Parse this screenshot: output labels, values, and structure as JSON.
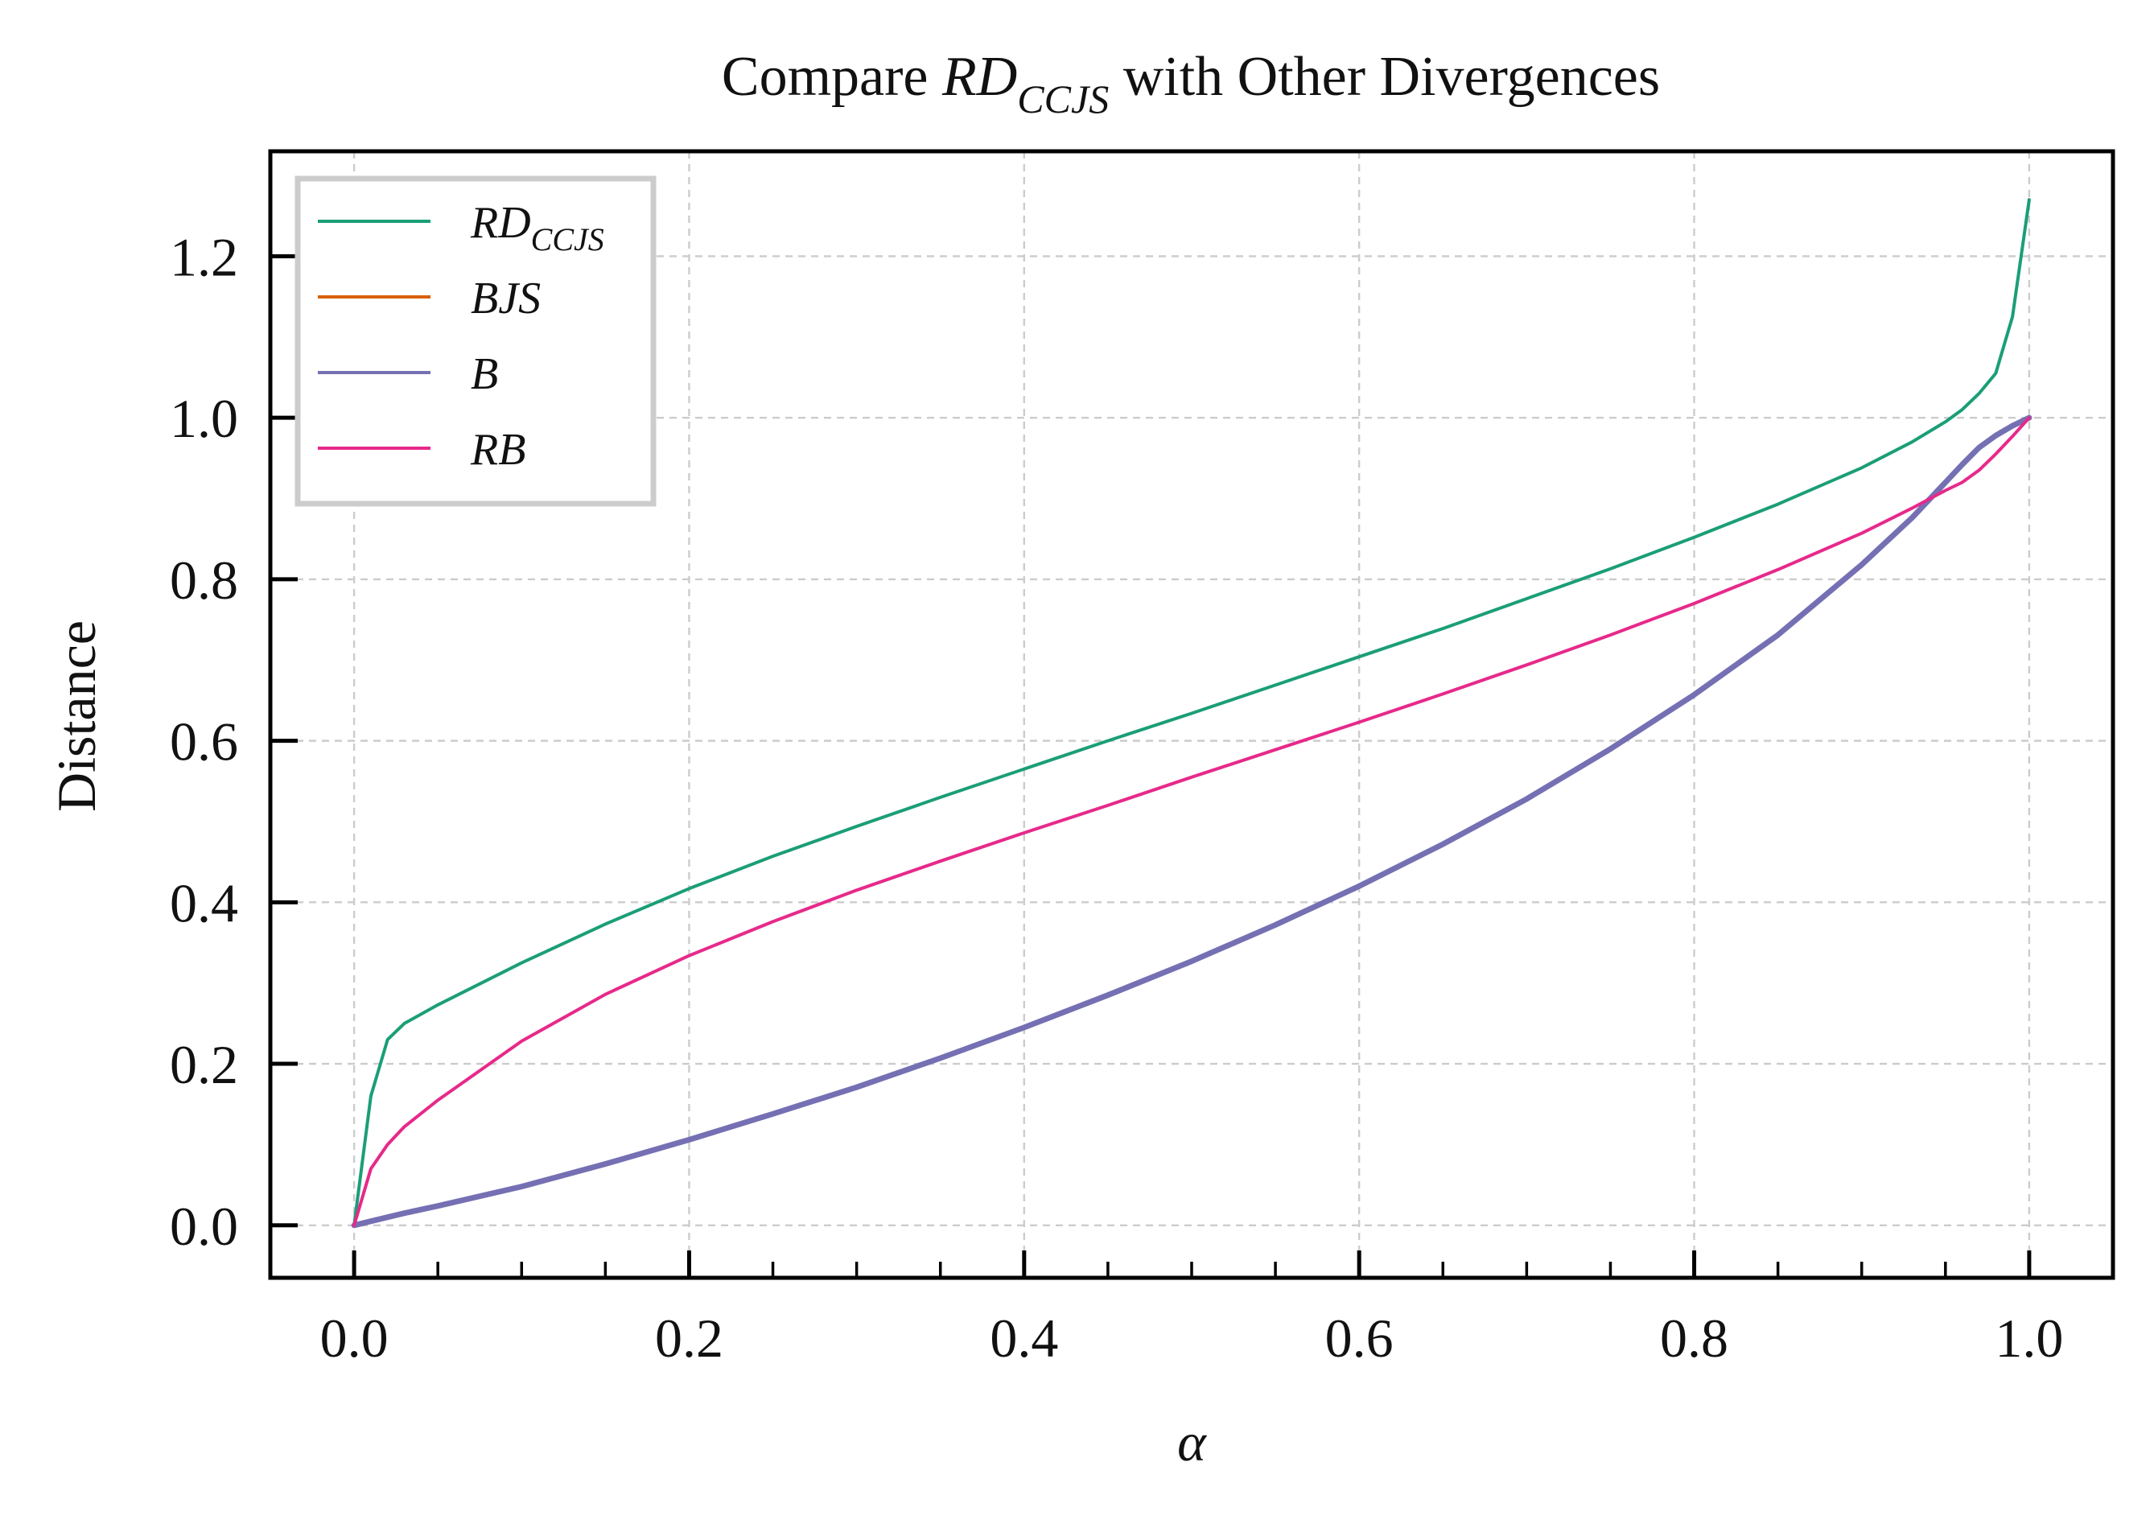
{
  "chart_data": {
    "type": "line",
    "title": {
      "prefix": "Compare ",
      "symbol": "RD",
      "subscript": "CCJS",
      "suffix": " with Other Divergences"
    },
    "xlabel": "α",
    "ylabel": "Distance",
    "xlim": [
      -0.05,
      1.05
    ],
    "ylim": [
      -0.065,
      1.33
    ],
    "xticks": [
      0.0,
      0.2,
      0.4,
      0.6,
      0.8,
      1.0
    ],
    "xtick_labels": [
      "0.0",
      "0.2",
      "0.4",
      "0.6",
      "0.8",
      "1.0"
    ],
    "yticks": [
      0.0,
      0.2,
      0.4,
      0.6,
      0.8,
      1.0,
      1.2
    ],
    "ytick_labels": [
      "0.0",
      "0.2",
      "0.4",
      "0.6",
      "0.8",
      "1.0",
      "1.2"
    ],
    "grid": true,
    "legend_position": "top-left",
    "x": [
      0.0,
      0.01,
      0.02,
      0.03,
      0.05,
      0.1,
      0.15,
      0.2,
      0.25,
      0.3,
      0.35,
      0.4,
      0.45,
      0.5,
      0.55,
      0.6,
      0.65,
      0.7,
      0.75,
      0.8,
      0.85,
      0.9,
      0.93,
      0.95,
      0.96,
      0.97,
      0.98,
      0.99,
      1.0
    ],
    "series": [
      {
        "name": "RD",
        "subscript": "CCJS",
        "color": "#1b9e77",
        "width": 4,
        "values": [
          0.0,
          0.16,
          0.23,
          0.25,
          0.273,
          0.325,
          0.373,
          0.417,
          0.457,
          0.494,
          0.53,
          0.565,
          0.6,
          0.634,
          0.669,
          0.704,
          0.739,
          0.776,
          0.813,
          0.852,
          0.893,
          0.938,
          0.97,
          0.995,
          1.01,
          1.03,
          1.055,
          1.125,
          1.27
        ]
      },
      {
        "name": "BJS",
        "subscript": "",
        "color": "#d95f02",
        "width": 5,
        "values": [
          0.0,
          0.005,
          0.01,
          0.015,
          0.024,
          0.048,
          0.076,
          0.106,
          0.138,
          0.171,
          0.207,
          0.245,
          0.285,
          0.327,
          0.372,
          0.42,
          0.472,
          0.528,
          0.59,
          0.657,
          0.731,
          0.818,
          0.876,
          0.92,
          0.942,
          0.963,
          0.978,
          0.99,
          1.0
        ]
      },
      {
        "name": "B",
        "subscript": "",
        "color": "#7570b3",
        "width": 7,
        "values": [
          0.0,
          0.005,
          0.01,
          0.015,
          0.024,
          0.048,
          0.076,
          0.106,
          0.138,
          0.171,
          0.207,
          0.245,
          0.285,
          0.327,
          0.372,
          0.42,
          0.472,
          0.528,
          0.59,
          0.657,
          0.731,
          0.818,
          0.876,
          0.92,
          0.942,
          0.963,
          0.978,
          0.99,
          1.0
        ]
      },
      {
        "name": "RB",
        "subscript": "",
        "color": "#e7298a",
        "width": 4,
        "values": [
          0.0,
          0.07,
          0.1,
          0.122,
          0.155,
          0.228,
          0.286,
          0.334,
          0.376,
          0.415,
          0.451,
          0.486,
          0.52,
          0.555,
          0.589,
          0.623,
          0.658,
          0.694,
          0.731,
          0.77,
          0.812,
          0.857,
          0.888,
          0.91,
          0.92,
          0.935,
          0.955,
          0.977,
          1.0
        ]
      }
    ]
  }
}
